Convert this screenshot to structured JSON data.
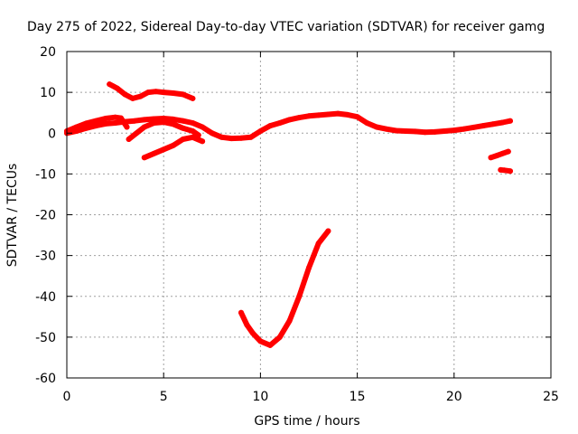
{
  "chart_data": {
    "type": "scatter",
    "title": "Day 275 of 2022, Sidereal Day-to-day VTEC variation (SDTVAR) for receiver gamg",
    "xlabel": "GPS time / hours",
    "ylabel": "SDTVAR / TECUs",
    "xlim": [
      0,
      25
    ],
    "ylim": [
      -60,
      20
    ],
    "xticks": [
      0,
      5,
      10,
      15,
      20,
      25
    ],
    "yticks": [
      20,
      10,
      0,
      -10,
      -20,
      -30,
      -40,
      -50,
      -60
    ],
    "xtick_labels": [
      "0",
      "5",
      "10",
      "15",
      "20",
      "25"
    ],
    "ytick_labels": [
      "20",
      "10",
      "0",
      "-10",
      "-20",
      "-30",
      "-40",
      "-50",
      "-60"
    ],
    "grid": true,
    "legend": "none",
    "series": [
      {
        "name": "track-a",
        "color": "#ff0000",
        "x": [
          0,
          0.5,
          1,
          1.5,
          2,
          2.5,
          3,
          3.5,
          4,
          4.5,
          5,
          5.5,
          6,
          6.5,
          7,
          7.5,
          8,
          8.5,
          9,
          9.5,
          10,
          10.5,
          11,
          11.5,
          12,
          12.5,
          13,
          13.5,
          14,
          14.5,
          15,
          15.5,
          16,
          16.5,
          17,
          17.5,
          18,
          18.5,
          19,
          19.5,
          20,
          20.5,
          21,
          21.5,
          22,
          22.5,
          22.9
        ],
        "y": [
          0,
          0.5,
          1.2,
          1.8,
          2.3,
          2.5,
          2.8,
          3.0,
          3.3,
          3.5,
          3.6,
          3.4,
          3.0,
          2.5,
          1.5,
          0,
          -1.0,
          -1.3,
          -1.2,
          -1.0,
          0.5,
          1.8,
          2.5,
          3.3,
          3.8,
          4.2,
          4.4,
          4.6,
          4.8,
          4.5,
          4.0,
          2.5,
          1.5,
          1.0,
          0.6,
          0.5,
          0.4,
          0.2,
          0.3,
          0.5,
          0.7,
          1.0,
          1.4,
          1.8,
          2.2,
          2.6,
          3.0
        ]
      },
      {
        "name": "track-b",
        "color": "#ff0000",
        "x": [
          0,
          0.5,
          1,
          1.5,
          2,
          2.5,
          2.8,
          3.1
        ],
        "y": [
          0.5,
          1.5,
          2.4,
          3.0,
          3.6,
          3.9,
          3.7,
          1.5
        ]
      },
      {
        "name": "track-c",
        "color": "#ff0000",
        "x": [
          2.2,
          2.6,
          3.0,
          3.4,
          3.8,
          4.2,
          4.6,
          5.0,
          5.5,
          6.0,
          6.5
        ],
        "y": [
          12,
          11,
          9.5,
          8.5,
          9.0,
          10,
          10.2,
          10,
          9.8,
          9.5,
          8.5
        ]
      },
      {
        "name": "track-d",
        "color": "#ff0000",
        "x": [
          3.2,
          3.6,
          4.0,
          4.5,
          5.0,
          5.5,
          6.0,
          6.5,
          6.8
        ],
        "y": [
          -1.5,
          0,
          1.5,
          2.5,
          2.7,
          2.2,
          1.2,
          0.5,
          -0.5
        ]
      },
      {
        "name": "track-e",
        "color": "#ff0000",
        "x": [
          4.0,
          4.5,
          5.0,
          5.5,
          6.0,
          6.5,
          7.0
        ],
        "y": [
          -6,
          -5,
          -4,
          -3,
          -1.5,
          -1.0,
          -2
        ]
      },
      {
        "name": "track-f",
        "color": "#ff0000",
        "x": [
          9.0,
          9.3,
          9.6,
          10.0,
          10.5,
          11.0,
          11.5,
          12.0,
          12.5,
          13.0,
          13.5
        ],
        "y": [
          -44,
          -47,
          -49,
          -51,
          -52,
          -50,
          -46,
          -40,
          -33,
          -27,
          -24
        ]
      },
      {
        "name": "track-g",
        "color": "#ff0000",
        "x": [
          21.9,
          22.2,
          22.5,
          22.8
        ],
        "y": [
          -6,
          -5.5,
          -5,
          -4.5
        ]
      },
      {
        "name": "track-h",
        "color": "#ff0000",
        "x": [
          22.4,
          22.6,
          22.9
        ],
        "y": [
          -9,
          -9.1,
          -9.3
        ]
      }
    ]
  }
}
